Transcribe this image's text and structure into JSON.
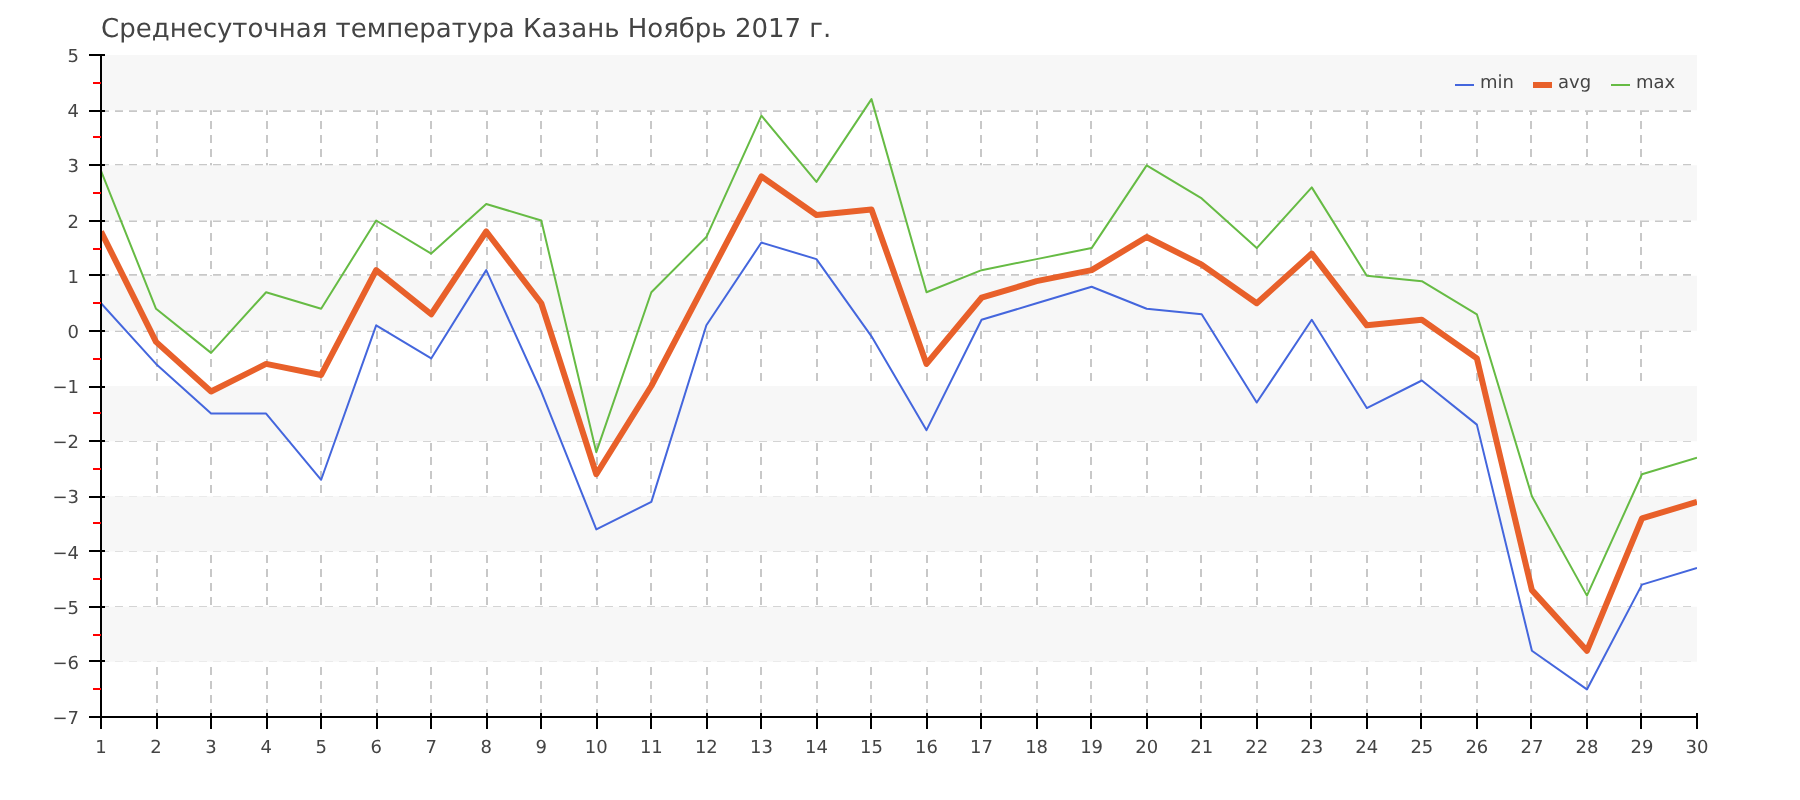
{
  "chart_data": {
    "type": "line",
    "title": "Среднесуточная температура Казань  Ноябрь 2017 г.",
    "x": [
      1,
      2,
      3,
      4,
      5,
      6,
      7,
      8,
      9,
      10,
      11,
      12,
      13,
      14,
      15,
      16,
      17,
      18,
      19,
      20,
      21,
      22,
      23,
      24,
      25,
      26,
      27,
      28,
      29,
      30
    ],
    "series": [
      {
        "name": "min",
        "color": "#4466dd",
        "values": [
          0.5,
          -0.6,
          -1.5,
          -1.5,
          -2.7,
          0.1,
          -0.5,
          1.1,
          -1.1,
          -3.6,
          -3.1,
          0.1,
          1.6,
          1.3,
          -0.1,
          -1.8,
          0.2,
          0.5,
          0.8,
          0.4,
          0.3,
          -1.3,
          0.2,
          -1.4,
          -0.9,
          -1.7,
          -5.8,
          -6.5,
          -4.6,
          -4.3
        ]
      },
      {
        "name": "avg",
        "color": "#e8602a",
        "values": [
          1.8,
          -0.2,
          -1.1,
          -0.6,
          -0.8,
          1.1,
          0.3,
          1.8,
          0.5,
          -2.6,
          -1.0,
          0.9,
          2.8,
          2.1,
          2.2,
          -0.6,
          0.6,
          0.9,
          1.1,
          1.7,
          1.2,
          0.5,
          1.4,
          0.1,
          0.2,
          -0.5,
          -4.7,
          -5.8,
          -3.4,
          -3.1
        ]
      },
      {
        "name": "max",
        "color": "#66bb44",
        "values": [
          2.9,
          0.4,
          -0.4,
          0.7,
          0.4,
          2.0,
          1.4,
          2.3,
          2.0,
          -2.2,
          0.7,
          1.7,
          3.9,
          2.7,
          4.2,
          0.7,
          1.1,
          1.3,
          1.5,
          3.0,
          2.4,
          1.5,
          2.6,
          1.0,
          0.9,
          0.3,
          -3.0,
          -4.8,
          -2.6,
          -2.3
        ]
      }
    ],
    "xlim": [
      1,
      30
    ],
    "xticks": [
      1,
      2,
      3,
      4,
      5,
      6,
      7,
      8,
      9,
      10,
      11,
      12,
      13,
      14,
      15,
      16,
      17,
      18,
      19,
      20,
      21,
      22,
      23,
      24,
      25,
      26,
      27,
      28,
      29,
      30
    ],
    "ylim": [
      -7,
      5
    ],
    "yticks": [
      -7,
      -6,
      -5,
      -4,
      -3,
      -2,
      -1,
      0,
      1,
      2,
      3,
      4,
      5
    ],
    "bands": [
      {
        "axis": "y",
        "from": 4,
        "to": 5,
        "color": "#f7f7f7"
      },
      {
        "axis": "y",
        "from": 2,
        "to": 3,
        "color": "#f7f7f7"
      },
      {
        "axis": "y",
        "from": 0,
        "to": 1,
        "color": "#f7f7f7"
      },
      {
        "axis": "y",
        "from": -2,
        "to": -1,
        "color": "#f7f7f7"
      },
      {
        "axis": "y",
        "from": -4,
        "to": -3,
        "color": "#f7f7f7"
      },
      {
        "axis": "y",
        "from": -6,
        "to": -5,
        "color": "#f7f7f7"
      }
    ],
    "grid": true,
    "legend": "top right",
    "line_style": "solid",
    "marker": "none"
  }
}
